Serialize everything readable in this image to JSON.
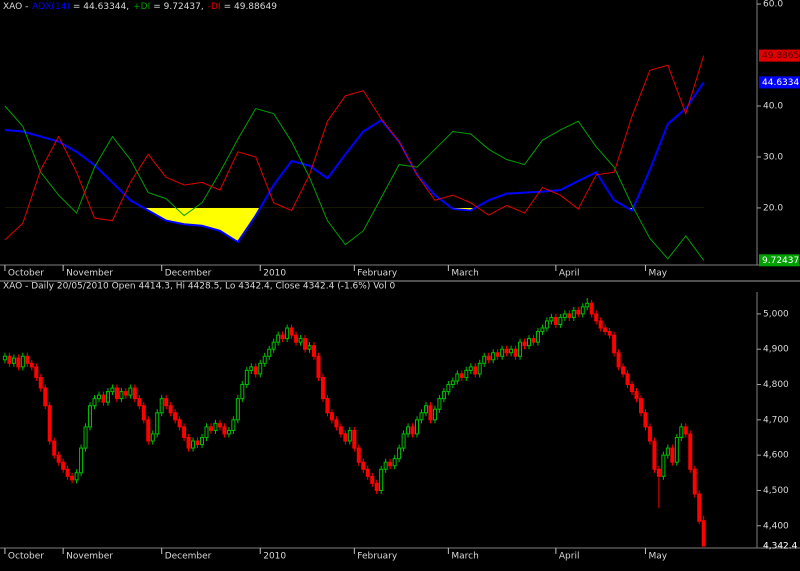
{
  "chart_data": [
    {
      "type": "line",
      "title_prefix": "XAO -",
      "x": [
        0,
        4,
        8,
        12,
        16,
        20,
        24,
        28,
        32,
        36,
        40,
        44,
        48,
        52,
        56,
        60,
        64,
        68,
        72,
        76,
        80,
        84,
        88,
        92,
        96,
        100,
        104,
        108,
        112,
        116,
        120,
        124,
        128,
        132,
        136,
        140,
        144,
        148,
        152,
        156
      ],
      "xlim": [
        -1.1,
        167.9
      ],
      "xticks": [
        {
          "value": 0,
          "label": "October"
        },
        {
          "value": 13,
          "label": "November"
        },
        {
          "value": 35,
          "label": "December"
        },
        {
          "value": 57,
          "label": "2010"
        },
        {
          "value": 78,
          "label": "February"
        },
        {
          "value": 99,
          "label": "March"
        },
        {
          "value": 123,
          "label": "April"
        },
        {
          "value": 143,
          "label": "May"
        }
      ],
      "ylim": [
        8.8,
        60.8
      ],
      "yticks": [
        {
          "value": 60,
          "label": "60.0"
        },
        {
          "value": 40,
          "label": "40.0"
        },
        {
          "value": 30,
          "label": "30.0"
        },
        {
          "value": 20,
          "label": "20.0"
        }
      ],
      "fill_below": 20,
      "fill_color": "#ffff00",
      "series": [
        {
          "name": "ADX(14)",
          "readout": "= 44.63344,",
          "color": "#0000ff",
          "width": 2,
          "fill": true,
          "last_label": "44.6334",
          "label_text_color": "#ffffff",
          "values": [
            35.3,
            35.0,
            34.0,
            33.0,
            31.0,
            28.4,
            25.0,
            21.5,
            19.5,
            17.5,
            16.8,
            16.5,
            15.5,
            13.3,
            18.5,
            24.5,
            29.2,
            28.3,
            25.8,
            30.5,
            35.0,
            37.2,
            33.0,
            26.5,
            22.5,
            19.8,
            19.5,
            21.5,
            22.8,
            23.0,
            23.2,
            23.5,
            25.3,
            27.0,
            21.5,
            19.5,
            27.5,
            36.5,
            39.5,
            44.63344
          ]
        },
        {
          "name": "+DI",
          "readout": "= 9.72437,",
          "color": "#00a000",
          "width": 1,
          "last_label": "9.72437",
          "label_text_color": "#ffffff",
          "values": [
            40.0,
            36.0,
            27.0,
            22.5,
            19.0,
            28.0,
            34.0,
            29.5,
            23.0,
            21.8,
            18.5,
            21.0,
            27.0,
            33.5,
            39.5,
            38.5,
            33.0,
            26.0,
            17.5,
            12.8,
            15.5,
            22.0,
            28.5,
            28.0,
            31.5,
            35.0,
            34.5,
            31.5,
            29.5,
            28.5,
            33.3,
            35.3,
            37.0,
            32.0,
            28.0,
            20.5,
            14.0,
            10.0,
            14.5,
            9.72437
          ]
        },
        {
          "name": "-DI",
          "readout": "= 49.88649",
          "color": "#e00000",
          "width": 1,
          "last_label": "49.8865",
          "label_text_color": "#500000",
          "values": [
            13.7,
            17.0,
            27.5,
            34.0,
            27.0,
            18.0,
            17.5,
            25.0,
            30.5,
            26.0,
            24.5,
            25.0,
            23.5,
            31.0,
            30.0,
            21.0,
            19.5,
            26.5,
            37.0,
            42.0,
            43.0,
            37.5,
            33.0,
            26.5,
            21.5,
            22.5,
            21.0,
            18.6,
            20.5,
            19.0,
            24.0,
            22.5,
            19.8,
            26.5,
            27.0,
            38.0,
            47.0,
            48.0,
            38.5,
            49.88649
          ]
        }
      ]
    },
    {
      "type": "candlestick",
      "title": "XAO - Daily 20/05/2010 Open 4414.3, Hi 4428.5, Lo 4342.4, Close 4342.4 (-1.6%) Vol 0",
      "xlim": [
        -1.1,
        167.9
      ],
      "xticks": [
        {
          "value": 0,
          "label": "October"
        },
        {
          "value": 13,
          "label": "November"
        },
        {
          "value": 35,
          "label": "December"
        },
        {
          "value": 57,
          "label": "2010"
        },
        {
          "value": 78,
          "label": "February"
        },
        {
          "value": 99,
          "label": "March"
        },
        {
          "value": 123,
          "label": "April"
        },
        {
          "value": 143,
          "label": "May"
        }
      ],
      "ylim": [
        4337,
        5062
      ],
      "yticks": [
        {
          "value": 5000,
          "label": "5,000"
        },
        {
          "value": 4900,
          "label": "4,900"
        },
        {
          "value": 4800,
          "label": "4,800"
        },
        {
          "value": 4700,
          "label": "4,700"
        },
        {
          "value": 4600,
          "label": "4,600"
        },
        {
          "value": 4500,
          "label": "4,500"
        },
        {
          "value": 4400,
          "label": "4,400"
        }
      ],
      "last_label": "4,342.4",
      "up_color": "#00c000",
      "down_color": "#ff0000",
      "ohlc": [
        [
          4870,
          4890,
          4860,
          4880
        ],
        [
          4880,
          4890,
          4850,
          4860
        ],
        [
          4860,
          4885,
          4850,
          4875
        ],
        [
          4875,
          4885,
          4840,
          4850
        ],
        [
          4850,
          4890,
          4840,
          4880
        ],
        [
          4880,
          4890,
          4850,
          4860
        ],
        [
          4860,
          4870,
          4840,
          4850
        ],
        [
          4850,
          4860,
          4810,
          4820
        ],
        [
          4820,
          4830,
          4780,
          4790
        ],
        [
          4790,
          4800,
          4730,
          4740
        ],
        [
          4740,
          4750,
          4630,
          4640
        ],
        [
          4640,
          4650,
          4590,
          4600
        ],
        [
          4600,
          4610,
          4570,
          4580
        ],
        [
          4580,
          4590,
          4550,
          4560
        ],
        [
          4560,
          4570,
          4530,
          4540
        ],
        [
          4540,
          4550,
          4520,
          4530
        ],
        [
          4530,
          4560,
          4520,
          4550
        ],
        [
          4550,
          4630,
          4540,
          4620
        ],
        [
          4620,
          4690,
          4610,
          4680
        ],
        [
          4680,
          4750,
          4670,
          4740
        ],
        [
          4740,
          4770,
          4730,
          4760
        ],
        [
          4760,
          4780,
          4750,
          4770
        ],
        [
          4770,
          4780,
          4740,
          4750
        ],
        [
          4750,
          4790,
          4740,
          4780
        ],
        [
          4780,
          4800,
          4770,
          4790
        ],
        [
          4790,
          4800,
          4750,
          4760
        ],
        [
          4760,
          4790,
          4750,
          4780
        ],
        [
          4780,
          4790,
          4760,
          4770
        ],
        [
          4770,
          4800,
          4760,
          4790
        ],
        [
          4790,
          4800,
          4750,
          4760
        ],
        [
          4760,
          4770,
          4730,
          4740
        ],
        [
          4740,
          4750,
          4690,
          4700
        ],
        [
          4700,
          4710,
          4630,
          4640
        ],
        [
          4640,
          4670,
          4630,
          4660
        ],
        [
          4660,
          4730,
          4650,
          4720
        ],
        [
          4720,
          4770,
          4710,
          4760
        ],
        [
          4760,
          4770,
          4730,
          4740
        ],
        [
          4740,
          4750,
          4710,
          4720
        ],
        [
          4720,
          4730,
          4690,
          4700
        ],
        [
          4700,
          4710,
          4670,
          4680
        ],
        [
          4680,
          4690,
          4640,
          4650
        ],
        [
          4650,
          4660,
          4610,
          4620
        ],
        [
          4620,
          4650,
          4610,
          4640
        ],
        [
          4640,
          4650,
          4620,
          4630
        ],
        [
          4630,
          4660,
          4620,
          4650
        ],
        [
          4650,
          4690,
          4640,
          4680
        ],
        [
          4680,
          4690,
          4660,
          4670
        ],
        [
          4670,
          4700,
          4660,
          4690
        ],
        [
          4690,
          4700,
          4670,
          4680
        ],
        [
          4680,
          4690,
          4650,
          4660
        ],
        [
          4660,
          4680,
          4650,
          4670
        ],
        [
          4670,
          4710,
          4660,
          4700
        ],
        [
          4700,
          4770,
          4690,
          4760
        ],
        [
          4760,
          4810,
          4750,
          4800
        ],
        [
          4800,
          4850,
          4790,
          4840
        ],
        [
          4840,
          4860,
          4830,
          4850
        ],
        [
          4850,
          4860,
          4820,
          4830
        ],
        [
          4830,
          4870,
          4820,
          4860
        ],
        [
          4860,
          4890,
          4850,
          4880
        ],
        [
          4880,
          4910,
          4870,
          4900
        ],
        [
          4900,
          4930,
          4890,
          4920
        ],
        [
          4920,
          4950,
          4910,
          4940
        ],
        [
          4940,
          4950,
          4920,
          4930
        ],
        [
          4930,
          4970,
          4920,
          4960
        ],
        [
          4960,
          4970,
          4930,
          4940
        ],
        [
          4940,
          4950,
          4910,
          4920
        ],
        [
          4920,
          4940,
          4910,
          4930
        ],
        [
          4930,
          4940,
          4890,
          4900
        ],
        [
          4900,
          4920,
          4890,
          4910
        ],
        [
          4910,
          4920,
          4870,
          4880
        ],
        [
          4880,
          4890,
          4810,
          4820
        ],
        [
          4820,
          4830,
          4750,
          4760
        ],
        [
          4760,
          4770,
          4710,
          4720
        ],
        [
          4720,
          4730,
          4690,
          4700
        ],
        [
          4700,
          4710,
          4670,
          4680
        ],
        [
          4680,
          4690,
          4650,
          4660
        ],
        [
          4660,
          4670,
          4630,
          4640
        ],
        [
          4640,
          4680,
          4630,
          4670
        ],
        [
          4670,
          4680,
          4610,
          4620
        ],
        [
          4620,
          4630,
          4570,
          4580
        ],
        [
          4580,
          4590,
          4550,
          4560
        ],
        [
          4560,
          4570,
          4530,
          4540
        ],
        [
          4540,
          4550,
          4510,
          4520
        ],
        [
          4520,
          4530,
          4490,
          4500
        ],
        [
          4500,
          4570,
          4490,
          4560
        ],
        [
          4560,
          4590,
          4550,
          4580
        ],
        [
          4580,
          4590,
          4560,
          4570
        ],
        [
          4570,
          4600,
          4560,
          4590
        ],
        [
          4590,
          4630,
          4580,
          4620
        ],
        [
          4620,
          4670,
          4610,
          4660
        ],
        [
          4660,
          4690,
          4650,
          4680
        ],
        [
          4680,
          4690,
          4650,
          4660
        ],
        [
          4660,
          4710,
          4650,
          4700
        ],
        [
          4700,
          4730,
          4690,
          4720
        ],
        [
          4720,
          4750,
          4710,
          4740
        ],
        [
          4740,
          4750,
          4690,
          4700
        ],
        [
          4700,
          4740,
          4690,
          4730
        ],
        [
          4730,
          4770,
          4720,
          4760
        ],
        [
          4760,
          4790,
          4750,
          4780
        ],
        [
          4780,
          4810,
          4770,
          4800
        ],
        [
          4800,
          4820,
          4790,
          4810
        ],
        [
          4810,
          4840,
          4800,
          4830
        ],
        [
          4830,
          4840,
          4810,
          4820
        ],
        [
          4820,
          4850,
          4810,
          4840
        ],
        [
          4840,
          4860,
          4830,
          4850
        ],
        [
          4850,
          4860,
          4820,
          4830
        ],
        [
          4830,
          4870,
          4820,
          4860
        ],
        [
          4860,
          4890,
          4850,
          4880
        ],
        [
          4880,
          4890,
          4860,
          4870
        ],
        [
          4870,
          4900,
          4860,
          4890
        ],
        [
          4890,
          4900,
          4870,
          4880
        ],
        [
          4880,
          4910,
          4870,
          4900
        ],
        [
          4900,
          4910,
          4880,
          4890
        ],
        [
          4890,
          4910,
          4880,
          4900
        ],
        [
          4900,
          4910,
          4870,
          4880
        ],
        [
          4880,
          4930,
          4870,
          4920
        ],
        [
          4920,
          4930,
          4900,
          4910
        ],
        [
          4910,
          4940,
          4900,
          4930
        ],
        [
          4930,
          4940,
          4910,
          4920
        ],
        [
          4920,
          4960,
          4910,
          4950
        ],
        [
          4950,
          4970,
          4940,
          4960
        ],
        [
          4960,
          4990,
          4950,
          4980
        ],
        [
          4980,
          5000,
          4970,
          4990
        ],
        [
          4990,
          5000,
          4960,
          4970
        ],
        [
          4970,
          5000,
          4960,
          4990
        ],
        [
          4990,
          5010,
          4980,
          5000
        ],
        [
          5000,
          5010,
          4980,
          4990
        ],
        [
          4990,
          5020,
          4980,
          5010
        ],
        [
          5010,
          5020,
          4990,
          5000
        ],
        [
          5000,
          5030,
          4990,
          5020
        ],
        [
          5020,
          5045,
          5010,
          5030
        ],
        [
          5030,
          5040,
          4990,
          5000
        ],
        [
          5000,
          5010,
          4970,
          4980
        ],
        [
          4980,
          4990,
          4950,
          4960
        ],
        [
          4960,
          4970,
          4940,
          4950
        ],
        [
          4950,
          4960,
          4930,
          4940
        ],
        [
          4940,
          4950,
          4880,
          4890
        ],
        [
          4890,
          4900,
          4840,
          4850
        ],
        [
          4850,
          4860,
          4820,
          4830
        ],
        [
          4830,
          4840,
          4790,
          4800
        ],
        [
          4800,
          4810,
          4770,
          4780
        ],
        [
          4780,
          4790,
          4750,
          4760
        ],
        [
          4760,
          4770,
          4710,
          4720
        ],
        [
          4720,
          4730,
          4670,
          4680
        ],
        [
          4680,
          4690,
          4630,
          4640
        ],
        [
          4640,
          4650,
          4550,
          4560
        ],
        [
          4560,
          4570,
          4450,
          4540
        ],
        [
          4540,
          4610,
          4530,
          4600
        ],
        [
          4600,
          4630,
          4590,
          4620
        ],
        [
          4620,
          4630,
          4570,
          4580
        ],
        [
          4580,
          4660,
          4570,
          4650
        ],
        [
          4650,
          4690,
          4640,
          4680
        ],
        [
          4680,
          4690,
          4650,
          4660
        ],
        [
          4660,
          4670,
          4550,
          4560
        ],
        [
          4560,
          4570,
          4480,
          4490
        ],
        [
          4490,
          4500,
          4405,
          4413
        ],
        [
          4414.3,
          4428.5,
          4342.4,
          4342.4
        ]
      ]
    }
  ]
}
